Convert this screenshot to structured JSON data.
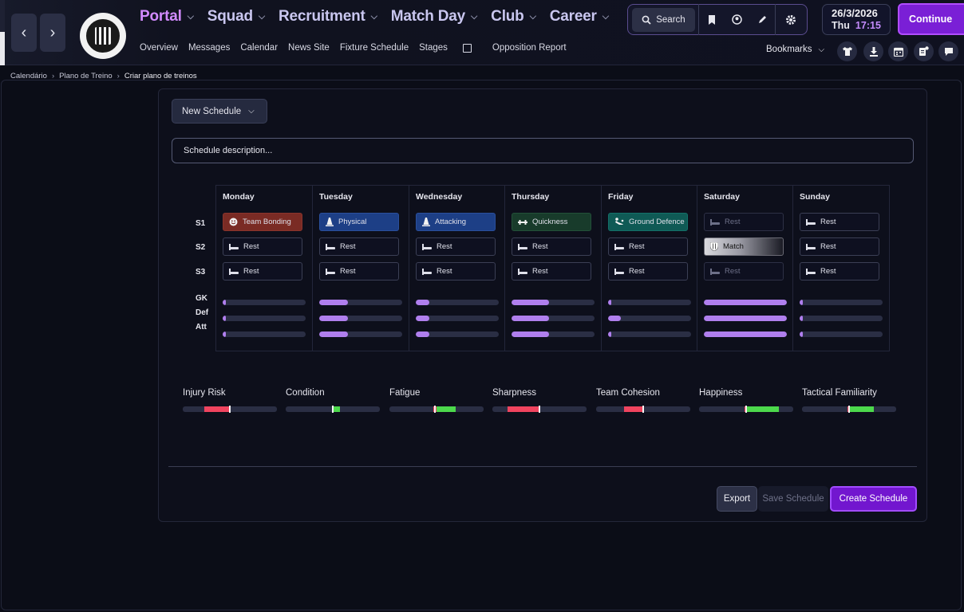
{
  "colors": {
    "accent": "#7216cf",
    "nav_active": "#d28bff",
    "bar_fill": "#b07fee",
    "meter_red": "#f0445f",
    "meter_green": "#4cd94c"
  },
  "header": {
    "nav": [
      {
        "label": "Portal",
        "active": true
      },
      {
        "label": "Squad",
        "active": false
      },
      {
        "label": "Recruitment",
        "active": false
      },
      {
        "label": "Match Day",
        "active": false
      },
      {
        "label": "Club",
        "active": false
      },
      {
        "label": "Career",
        "active": false
      }
    ],
    "subnav": [
      "Overview",
      "Messages",
      "Calendar",
      "News Site",
      "Fixture Schedule",
      "Stages",
      "Opposition Report"
    ],
    "search_label": "Search",
    "date": "26/3/2026",
    "weekday": "Thu",
    "time": "17:15",
    "continue_label": "Continue",
    "bookmarks_label": "Bookmarks",
    "icons": [
      "back-icon",
      "forward-icon",
      "bookmark-icon",
      "ball-icon",
      "pencil-icon",
      "gear-icon",
      "shirt-icon",
      "download-icon",
      "calendar-icon",
      "notes-icon",
      "chat-icon"
    ]
  },
  "breadcrumb": [
    "Calendário",
    "Plano de Treino",
    "Criar plano de treinos"
  ],
  "schedule": {
    "name_dropdown": "New Schedule",
    "description_placeholder": "Schedule description...",
    "session_labels": [
      "S1",
      "S2",
      "S3"
    ],
    "load_labels": [
      "GK",
      "Def",
      "Att"
    ],
    "days": [
      {
        "name": "Monday",
        "sessions": [
          {
            "label": "Team Bonding",
            "style": "red",
            "icon": "smile-icon"
          },
          {
            "label": "Rest",
            "style": "rest"
          },
          {
            "label": "Rest",
            "style": "rest"
          }
        ],
        "load": [
          0.04,
          0.04,
          0.04
        ]
      },
      {
        "name": "Tuesday",
        "sessions": [
          {
            "label": "Physical",
            "style": "blue",
            "icon": "cone-icon"
          },
          {
            "label": "Rest",
            "style": "rest"
          },
          {
            "label": "Rest",
            "style": "rest"
          }
        ],
        "load": [
          0.35,
          0.35,
          0.35
        ]
      },
      {
        "name": "Wednesday",
        "sessions": [
          {
            "label": "Attacking",
            "style": "blue",
            "icon": "cone-icon"
          },
          {
            "label": "Rest",
            "style": "rest"
          },
          {
            "label": "Rest",
            "style": "rest"
          }
        ],
        "load": [
          0.16,
          0.16,
          0.16
        ]
      },
      {
        "name": "Thursday",
        "sessions": [
          {
            "label": "Quickness",
            "style": "green",
            "icon": "dumbbell-icon"
          },
          {
            "label": "Rest",
            "style": "rest"
          },
          {
            "label": "Rest",
            "style": "rest"
          }
        ],
        "load": [
          0.45,
          0.45,
          0.45
        ]
      },
      {
        "name": "Friday",
        "sessions": [
          {
            "label": "Ground Defence",
            "style": "teal",
            "icon": "tackle-icon"
          },
          {
            "label": "Rest",
            "style": "rest"
          },
          {
            "label": "Rest",
            "style": "rest"
          }
        ],
        "load": [
          0.04,
          0.15,
          0.04
        ]
      },
      {
        "name": "Saturday",
        "sessions": [
          {
            "label": "Rest",
            "style": "dim"
          },
          {
            "label": "Match",
            "style": "match",
            "icon": "shield-icon"
          },
          {
            "label": "Rest",
            "style": "dim"
          }
        ],
        "load": [
          1.0,
          1.0,
          1.0
        ]
      },
      {
        "name": "Sunday",
        "sessions": [
          {
            "label": "Rest",
            "style": "rest"
          },
          {
            "label": "Rest",
            "style": "rest"
          },
          {
            "label": "Rest",
            "style": "rest"
          }
        ],
        "load": [
          0.02,
          0.02,
          0.02
        ]
      }
    ]
  },
  "meters": [
    {
      "label": "Injury Risk",
      "from": 0.23,
      "to": 0.5,
      "color": "red",
      "marker": 0.5
    },
    {
      "label": "Condition",
      "from": 0.5,
      "to": 0.58,
      "color": "green",
      "marker": 0.5,
      "red_from": 0.49
    },
    {
      "label": "Fatigue",
      "from": 0.5,
      "to": 0.7,
      "color": "green",
      "marker": 0.48,
      "red_from": 0.47
    },
    {
      "label": "Sharpness",
      "from": 0.16,
      "to": 0.5,
      "color": "red",
      "marker": 0.5
    },
    {
      "label": "Team Cohesion",
      "from": 0.3,
      "to": 0.5,
      "color": "red",
      "marker": 0.5
    },
    {
      "label": "Happiness",
      "from": 0.5,
      "to": 0.85,
      "color": "green",
      "marker": 0.5,
      "red_from": 0.48
    },
    {
      "label": "Tactical Familiarity",
      "from": 0.5,
      "to": 0.76,
      "color": "green",
      "marker": 0.5,
      "red_from": 0.48
    }
  ],
  "footer": {
    "export_label": "Export",
    "save_label": "Save Schedule",
    "create_label": "Create Schedule"
  }
}
